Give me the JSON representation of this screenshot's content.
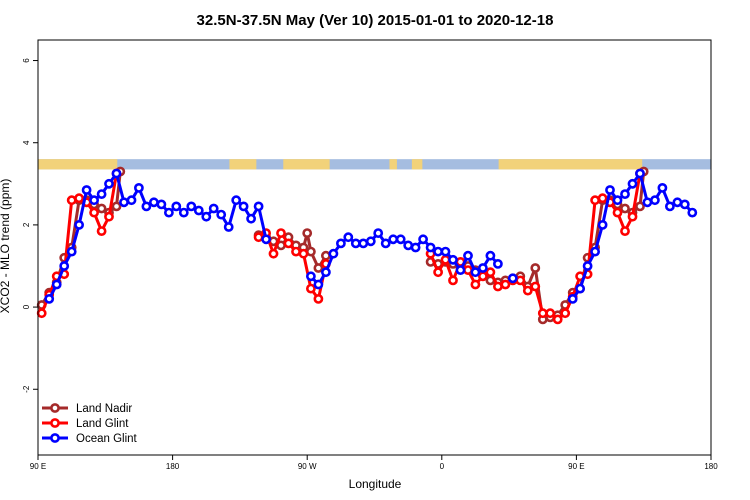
{
  "chart_data": {
    "type": "line",
    "title": "32.5N-37.5N May (Ver 10)   2015-01-01 to 2020-12-18",
    "xlabel": "Longitude",
    "ylabel": "XCO2 - MLO trend (ppm)",
    "xlim": [
      0,
      450
    ],
    "ylim": [
      -3.6,
      6.5
    ],
    "x_ticks": [
      {
        "value": 0,
        "label": "90 E"
      },
      {
        "value": 90,
        "label": "180"
      },
      {
        "value": 180,
        "label": "90 W"
      },
      {
        "value": 270,
        "label": "0"
      },
      {
        "value": 360,
        "label": "90 E"
      },
      {
        "value": 450,
        "label": "180"
      }
    ],
    "y_ticks": [
      {
        "value": -2,
        "label": "-2"
      },
      {
        "value": 0,
        "label": "0"
      },
      {
        "value": 2,
        "label": "2"
      },
      {
        "value": 4,
        "label": "4"
      },
      {
        "value": 6,
        "label": "6"
      }
    ],
    "grid": false,
    "legend_position": "bottom-left",
    "series": [
      {
        "name": "Land Nadir",
        "color": "#A52A2A",
        "points": [
          [
            2.5,
            0.05
          ],
          [
            7.5,
            0.35
          ],
          [
            12.5,
            0.6
          ],
          [
            17.5,
            1.2
          ],
          [
            22.5,
            1.45
          ],
          [
            27.5,
            2.6
          ],
          [
            32.5,
            2.6
          ],
          [
            37.5,
            2.5
          ],
          [
            42.5,
            2.4
          ],
          [
            47.5,
            2.3
          ],
          [
            52.5,
            2.45
          ],
          [
            55,
            3.3
          ],
          [
            147.5,
            1.75
          ],
          [
            152.5,
            1.7
          ],
          [
            157.5,
            1.6
          ],
          [
            162.5,
            1.5
          ],
          [
            167.5,
            1.7
          ],
          [
            172.5,
            1.5
          ],
          [
            177.5,
            1.45
          ],
          [
            180,
            1.8
          ],
          [
            182.5,
            1.35
          ],
          [
            187.5,
            0.95
          ],
          [
            192.5,
            1.25
          ],
          [
            262.5,
            1.1
          ],
          [
            267.5,
            1.05
          ],
          [
            272.5,
            1.1
          ],
          [
            277.5,
            1.05
          ],
          [
            282.5,
            0.95
          ],
          [
            287.5,
            1.0
          ],
          [
            292.5,
            0.9
          ],
          [
            297.5,
            0.85
          ],
          [
            302.5,
            0.65
          ],
          [
            307.5,
            0.6
          ],
          [
            312.5,
            0.65
          ],
          [
            317.5,
            0.7
          ],
          [
            322.5,
            0.75
          ],
          [
            327.5,
            0.5
          ],
          [
            332.5,
            0.95
          ],
          [
            337.5,
            -0.3
          ],
          [
            342.5,
            -0.25
          ],
          [
            347.5,
            -0.2
          ],
          [
            352.5,
            0.05
          ],
          [
            357.5,
            0.35
          ],
          [
            362.5,
            0.45
          ],
          [
            367.5,
            1.2
          ],
          [
            372.5,
            1.45
          ],
          [
            377.5,
            2.6
          ],
          [
            382.5,
            2.6
          ],
          [
            387.5,
            2.5
          ],
          [
            392.5,
            2.4
          ],
          [
            397.5,
            2.3
          ],
          [
            402.5,
            2.45
          ],
          [
            405,
            3.3
          ]
        ]
      },
      {
        "name": "Land Glint",
        "color": "#FF0000",
        "points": [
          [
            2.5,
            -0.15
          ],
          [
            7.5,
            0.3
          ],
          [
            12.5,
            0.75
          ],
          [
            17.5,
            0.8
          ],
          [
            22.5,
            2.6
          ],
          [
            27.5,
            2.65
          ],
          [
            32.5,
            2.55
          ],
          [
            37.5,
            2.3
          ],
          [
            42.5,
            1.85
          ],
          [
            47.5,
            2.2
          ],
          [
            52.5,
            3.25
          ],
          [
            147.5,
            1.7
          ],
          [
            152.5,
            1.8
          ],
          [
            157.5,
            1.3
          ],
          [
            162.5,
            1.8
          ],
          [
            167.5,
            1.55
          ],
          [
            172.5,
            1.35
          ],
          [
            177.5,
            1.3
          ],
          [
            182.5,
            0.45
          ],
          [
            187.5,
            0.2
          ],
          [
            192.5,
            1.05
          ],
          [
            262.5,
            1.3
          ],
          [
            267.5,
            0.85
          ],
          [
            272.5,
            1.15
          ],
          [
            277.5,
            0.65
          ],
          [
            282.5,
            1.1
          ],
          [
            287.5,
            0.9
          ],
          [
            292.5,
            0.55
          ],
          [
            297.5,
            0.75
          ],
          [
            302.5,
            0.85
          ],
          [
            307.5,
            0.5
          ],
          [
            312.5,
            0.55
          ],
          [
            317.5,
            0.65
          ],
          [
            322.5,
            0.65
          ],
          [
            327.5,
            0.4
          ],
          [
            332.5,
            0.5
          ],
          [
            337.5,
            -0.15
          ],
          [
            342.5,
            -0.15
          ],
          [
            347.5,
            -0.3
          ],
          [
            352.5,
            -0.15
          ],
          [
            357.5,
            0.25
          ],
          [
            362.5,
            0.75
          ],
          [
            367.5,
            0.8
          ],
          [
            372.5,
            2.6
          ],
          [
            377.5,
            2.65
          ],
          [
            382.5,
            2.55
          ],
          [
            387.5,
            2.3
          ],
          [
            392.5,
            1.85
          ],
          [
            397.5,
            2.2
          ],
          [
            402.5,
            3.25
          ]
        ]
      },
      {
        "name": "Ocean Glint",
        "color": "#0000FF",
        "points": [
          [
            7.5,
            0.2
          ],
          [
            12.5,
            0.55
          ],
          [
            17.5,
            1.0
          ],
          [
            22.5,
            1.35
          ],
          [
            27.5,
            2.0
          ],
          [
            32.5,
            2.85
          ],
          [
            37.5,
            2.6
          ],
          [
            42.5,
            2.75
          ],
          [
            47.5,
            3.0
          ],
          [
            52.5,
            3.25
          ],
          [
            57.5,
            2.55
          ],
          [
            62.5,
            2.6
          ],
          [
            67.5,
            2.9
          ],
          [
            72.5,
            2.45
          ],
          [
            77.5,
            2.55
          ],
          [
            82.5,
            2.5
          ],
          [
            87.5,
            2.3
          ],
          [
            92.5,
            2.45
          ],
          [
            97.5,
            2.3
          ],
          [
            102.5,
            2.45
          ],
          [
            107.5,
            2.35
          ],
          [
            112.5,
            2.2
          ],
          [
            117.5,
            2.4
          ],
          [
            122.5,
            2.25
          ],
          [
            127.5,
            1.95
          ],
          [
            132.5,
            2.6
          ],
          [
            137.5,
            2.45
          ],
          [
            142.5,
            2.15
          ],
          [
            147.5,
            2.45
          ],
          [
            152.5,
            1.65
          ],
          [
            182.5,
            0.75
          ],
          [
            187.5,
            0.55
          ],
          [
            192.5,
            0.85
          ],
          [
            197.5,
            1.3
          ],
          [
            202.5,
            1.55
          ],
          [
            207.5,
            1.7
          ],
          [
            212.5,
            1.55
          ],
          [
            217.5,
            1.55
          ],
          [
            222.5,
            1.6
          ],
          [
            227.5,
            1.8
          ],
          [
            232.5,
            1.55
          ],
          [
            237.5,
            1.65
          ],
          [
            242.5,
            1.65
          ],
          [
            247.5,
            1.5
          ],
          [
            252.5,
            1.45
          ],
          [
            257.5,
            1.65
          ],
          [
            262.5,
            1.45
          ],
          [
            267.5,
            1.35
          ],
          [
            272.5,
            1.35
          ],
          [
            277.5,
            1.15
          ],
          [
            282.5,
            0.9
          ],
          [
            287.5,
            1.25
          ],
          [
            292.5,
            0.85
          ],
          [
            297.5,
            0.95
          ],
          [
            302.5,
            1.25
          ],
          [
            307.5,
            1.05
          ],
          [
            317.5,
            0.7
          ],
          [
            357.5,
            0.2
          ],
          [
            362.5,
            0.45
          ],
          [
            367.5,
            1.0
          ],
          [
            372.5,
            1.35
          ],
          [
            377.5,
            2.0
          ],
          [
            382.5,
            2.85
          ],
          [
            387.5,
            2.6
          ],
          [
            392.5,
            2.75
          ],
          [
            397.5,
            3.0
          ],
          [
            402.5,
            3.25
          ],
          [
            407.5,
            2.55
          ],
          [
            412.5,
            2.6
          ],
          [
            417.5,
            2.9
          ],
          [
            422.5,
            2.45
          ],
          [
            427.5,
            2.55
          ],
          [
            432.5,
            2.5
          ],
          [
            437.5,
            2.3
          ]
        ]
      }
    ],
    "land_mask": {
      "y_range": [
        3.35,
        3.6
      ],
      "ocean_color": "#A5BDE0",
      "land_color": "#F2D27A",
      "land_segments": [
        [
          0,
          53
        ],
        [
          128,
          146
        ],
        [
          164,
          195
        ],
        [
          235,
          240
        ],
        [
          250,
          257
        ],
        [
          308,
          404
        ]
      ]
    }
  }
}
